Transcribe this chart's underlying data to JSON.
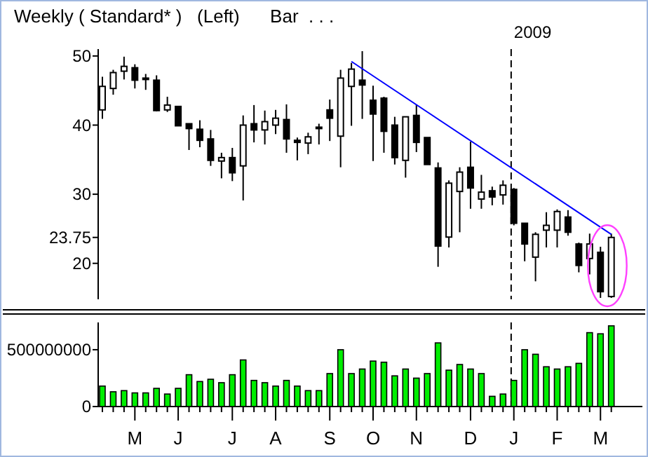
{
  "chart_data": [
    {
      "type": "candlestick",
      "title": "Weekly ( Standard* )   (Left)      Bar  . . .",
      "categories": [
        null,
        null,
        null,
        null,
        null,
        null,
        null,
        null,
        null,
        null,
        null,
        null,
        null,
        null,
        null,
        null,
        null,
        null,
        null,
        null,
        null,
        null,
        null,
        null,
        null,
        null,
        null,
        null,
        null,
        null,
        null,
        null,
        null,
        null,
        null,
        null,
        null,
        null,
        null,
        null,
        null,
        null,
        null,
        null,
        null,
        null,
        null,
        null
      ],
      "ohlc": [
        [
          42.2,
          47,
          40.9,
          45.6
        ],
        [
          45.3,
          48,
          44.4,
          47.6
        ],
        [
          47.8,
          49.9,
          46.6,
          48.5
        ],
        [
          48.3,
          48.8,
          45.3,
          46.5
        ],
        [
          46.8,
          47.4,
          45.1,
          46.6
        ],
        [
          46.5,
          47.2,
          42,
          42.1
        ],
        [
          42.2,
          44.1,
          41.9,
          42.9
        ],
        [
          42.7,
          42.7,
          39.9,
          39.9
        ],
        [
          40.2,
          40.2,
          36.4,
          39.5
        ],
        [
          39.4,
          40.7,
          36.8,
          37.8
        ],
        [
          38,
          39.3,
          34.1,
          34.9
        ],
        [
          34.8,
          36,
          32.3,
          35.3
        ],
        [
          35.3,
          36.7,
          31.9,
          33.1
        ],
        [
          34.1,
          41.4,
          29.1,
          40
        ],
        [
          40.2,
          42.9,
          37.5,
          39.3
        ],
        [
          39.3,
          42.1,
          37.2,
          40.5
        ],
        [
          40,
          42.2,
          38.7,
          41
        ],
        [
          40.8,
          43,
          36,
          38
        ],
        [
          37.8,
          38.2,
          34.9,
          37.5
        ],
        [
          37.4,
          38.9,
          35.8,
          38.3
        ],
        [
          39.7,
          40.2,
          37.2,
          39.5
        ],
        [
          42.2,
          43.7,
          37.7,
          41
        ],
        [
          38.4,
          48,
          33.9,
          46.8
        ],
        [
          45.6,
          49,
          39.9,
          48.1
        ],
        [
          46.5,
          50.7,
          40.9,
          45.8
        ],
        [
          43.6,
          45.7,
          34.8,
          41.6
        ],
        [
          43.9,
          44.1,
          36,
          39.1
        ],
        [
          40,
          41.2,
          34.3,
          35.3
        ],
        [
          34.9,
          41.2,
          32.4,
          41.2
        ],
        [
          41.4,
          42.9,
          36.1,
          37.5
        ],
        [
          38.2,
          38.2,
          34.3,
          34.3
        ],
        [
          33.8,
          34.6,
          19.5,
          22.5
        ],
        [
          23.8,
          32,
          22.3,
          31.6
        ],
        [
          30.4,
          33.9,
          24.5,
          33.2
        ],
        [
          33.9,
          37.6,
          27.9,
          30.9
        ],
        [
          29.3,
          32.8,
          27.9,
          30.3
        ],
        [
          30.5,
          31.1,
          28.4,
          29.6
        ],
        [
          29.9,
          32,
          28.5,
          31.3
        ],
        [
          30.7,
          30.9,
          25.5,
          25.8
        ],
        [
          25.8,
          25.8,
          20.3,
          22.8
        ],
        [
          20.9,
          24.5,
          17.4,
          24.2
        ],
        [
          24.8,
          27.4,
          22.3,
          25.5
        ],
        [
          24.8,
          27.8,
          22.3,
          27.5
        ],
        [
          26.7,
          27.7,
          24,
          24.5
        ],
        [
          22.8,
          23,
          18.7,
          19.7
        ],
        [
          20.7,
          24.3,
          18.4,
          22.8
        ],
        [
          21.6,
          22.4,
          15,
          15.9
        ],
        [
          15.2,
          24.3,
          15,
          23.75
        ]
      ],
      "series": [
        {
          "type": "line",
          "color": "#0000ff",
          "values": [
            null,
            null,
            null,
            null,
            null,
            null,
            null,
            null,
            null,
            null,
            null,
            null,
            null,
            null,
            null,
            null,
            null,
            null,
            null,
            null,
            null,
            null,
            null,
            49.2,
            null,
            null,
            null,
            null,
            null,
            null,
            null,
            null,
            null,
            null,
            null,
            null,
            null,
            null,
            null,
            null,
            null,
            null,
            null,
            null,
            null,
            null,
            null,
            24.2
          ]
        }
      ],
      "ylim": [
        14.8,
        51
      ],
      "yticks": [
        20,
        23.75,
        30,
        40,
        50
      ],
      "tick_labels": "y",
      "annotations": [
        "2009"
      ]
    },
    {
      "type": "bar",
      "color": "#00ee00",
      "categories": [
        null,
        null,
        null,
        "M",
        null,
        null,
        null,
        "J",
        null,
        null,
        null,
        null,
        "J",
        null,
        null,
        null,
        "A",
        null,
        null,
        null,
        null,
        "S",
        null,
        null,
        null,
        "O",
        null,
        null,
        null,
        "N",
        null,
        null,
        null,
        null,
        "D",
        null,
        null,
        null,
        "J",
        null,
        null,
        null,
        "F",
        null,
        null,
        null,
        "M",
        null
      ],
      "values": [
        180000000,
        130000000,
        140000000,
        120000000,
        120000000,
        160000000,
        110000000,
        160000000,
        280000000,
        220000000,
        240000000,
        210000000,
        280000000,
        410000000,
        230000000,
        210000000,
        180000000,
        230000000,
        180000000,
        140000000,
        140000000,
        290000000,
        500000000,
        290000000,
        330000000,
        400000000,
        390000000,
        270000000,
        330000000,
        250000000,
        290000000,
        560000000,
        320000000,
        370000000,
        330000000,
        290000000,
        90000000,
        110000000,
        230000000,
        500000000,
        460000000,
        350000000,
        330000000,
        350000000,
        380000000,
        650000000,
        640000000,
        710000000
      ],
      "ylim": [
        0,
        740000000
      ],
      "yticks": [
        0,
        500000000
      ]
    }
  ]
}
